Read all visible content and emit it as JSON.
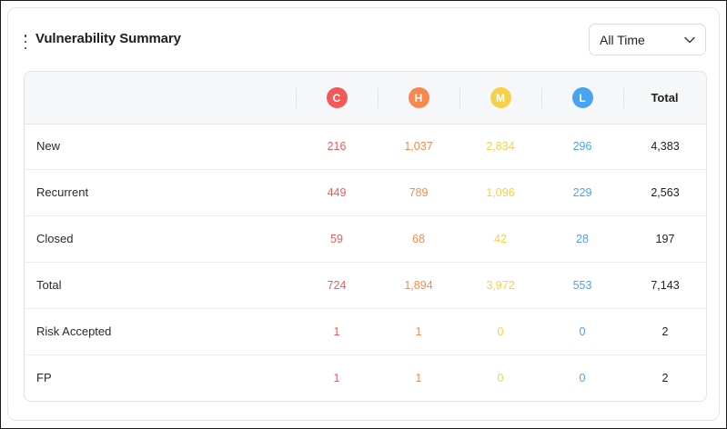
{
  "widget": {
    "title": "Vulnerability Summary",
    "timeframe": {
      "selected": "All Time"
    }
  },
  "colors": {
    "critical": "#f25a5a",
    "high": "#f5894f",
    "medium": "#f7d04a",
    "low": "#4aa3f0",
    "total": "#222222"
  },
  "table": {
    "headers": [
      {
        "key": "critical",
        "badge": "C"
      },
      {
        "key": "high",
        "badge": "H"
      },
      {
        "key": "medium",
        "badge": "M"
      },
      {
        "key": "low",
        "badge": "L"
      },
      {
        "key": "total",
        "label": "Total"
      }
    ],
    "rows": [
      {
        "label": "New",
        "critical": "216",
        "high": "1,037",
        "medium": "2,834",
        "low": "296",
        "total": "4,383"
      },
      {
        "label": "Recurrent",
        "critical": "449",
        "high": "789",
        "medium": "1,096",
        "low": "229",
        "total": "2,563"
      },
      {
        "label": "Closed",
        "critical": "59",
        "high": "68",
        "medium": "42",
        "low": "28",
        "total": "197"
      },
      {
        "label": "Total",
        "critical": "724",
        "high": "1,894",
        "medium": "3,972",
        "low": "553",
        "total": "7,143"
      },
      {
        "label": "Risk Accepted",
        "critical": "1",
        "high": "1",
        "medium": "0",
        "low": "0",
        "total": "2"
      },
      {
        "label": "FP",
        "critical": "1",
        "high": "1",
        "medium": "0",
        "low": "0",
        "total": "2"
      }
    ]
  }
}
